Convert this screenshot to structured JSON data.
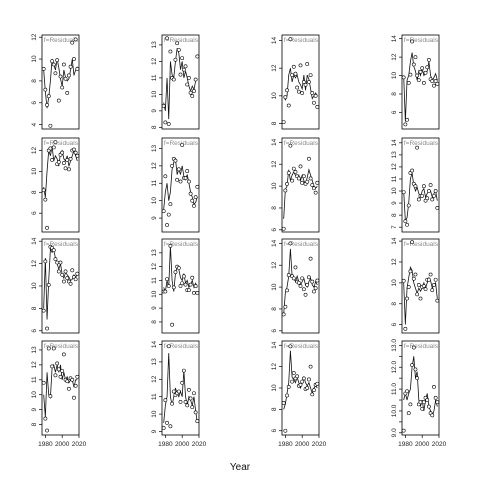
{
  "figure": {
    "xlabel": "Year"
  },
  "chart_data": {
    "type": "line",
    "xlabel": "Year",
    "x": [
      1978,
      1980,
      1982,
      1984,
      1986,
      1988,
      1990,
      1992,
      1994,
      1996,
      1998,
      2000,
      2002,
      2004,
      2006,
      2008,
      2010,
      2012,
      2014,
      2016,
      2018
    ],
    "x_ticks": [
      1980,
      2000,
      2020
    ],
    "panel_label_suffix": "f=Residuals",
    "panels": [
      {
        "row": 0,
        "col": 0,
        "ylim": [
          3.6,
          12.2
        ],
        "yticks": [
          4,
          6,
          8,
          10,
          12
        ],
        "ytick_labels": [
          "4",
          "6",
          "8",
          "10",
          "12"
        ],
        "y_fit": [
          9,
          7,
          5.5,
          6.5,
          8,
          10,
          9.5,
          9,
          10,
          9.2,
          8.2,
          7.5,
          9,
          8.3,
          8,
          8.2,
          9,
          10,
          8.5,
          9,
          9.3
        ],
        "y_points": [
          9.1,
          7.2,
          5.8,
          6.6,
          3.9,
          9.8,
          9.5,
          8.7,
          9.9,
          6.2,
          8.4,
          7.4,
          9.5,
          8.2,
          6.9,
          8.5,
          9.3,
          11.5,
          10,
          11.8,
          9.1
        ]
      },
      {
        "row": 0,
        "col": 1,
        "ylim": [
          7.9,
          13.6
        ],
        "yticks": [
          8,
          9,
          10,
          11,
          12,
          13
        ],
        "ytick_labels": [
          "8",
          "9",
          "10",
          "11",
          "12",
          "13"
        ],
        "y_fit": [
          9.5,
          9,
          11,
          8.5,
          12,
          11.2,
          11,
          12,
          12.8,
          12.5,
          11.5,
          12,
          11,
          11.4,
          11,
          10.5,
          10.2,
          10.5,
          10.3,
          10.8,
          10.9
        ],
        "y_points": [
          9.3,
          8.3,
          13.4,
          8.2,
          12.6,
          11,
          10.9,
          12.1,
          13.1,
          12.7,
          11.2,
          12.2,
          11.5,
          11.7,
          10.6,
          11,
          10.1,
          9.9,
          10.2,
          10.9,
          12.3
        ]
      },
      {
        "row": 0,
        "col": 2,
        "ylim": [
          7.6,
          14.4
        ],
        "yticks": [
          8,
          10,
          12,
          14
        ],
        "ytick_labels": [
          "8",
          "10",
          "12",
          "14"
        ],
        "y_fit": [
          10,
          9.7,
          10,
          11.5,
          12,
          11,
          11.5,
          11.3,
          11.5,
          11,
          10.8,
          10.5,
          11.5,
          10.4,
          11.5,
          11.2,
          10.5,
          9.8,
          10,
          10.2,
          10
        ],
        "y_points": [
          8.1,
          9.9,
          10.4,
          9.3,
          14.1,
          11.5,
          12.1,
          11.6,
          10.6,
          10.3,
          12.2,
          10.2,
          11,
          10.8,
          12.3,
          11,
          11.5,
          10.2,
          9.5,
          10,
          9.2
        ]
      },
      {
        "row": 0,
        "col": 3,
        "ylim": [
          4.2,
          14.4
        ],
        "yticks": [
          6,
          8,
          10,
          12,
          14
        ],
        "ytick_labels": [
          "6",
          "8",
          "10",
          "12",
          "14"
        ],
        "y_fit": [
          10,
          5,
          9.5,
          10,
          11.5,
          12.5,
          11,
          10.5,
          9.5,
          10.5,
          10,
          10.8,
          10,
          10.2,
          10.5,
          11.5,
          10,
          9.5,
          9.8,
          10.2,
          9.5
        ],
        "y_points": [
          9.8,
          4.7,
          5.2,
          9.2,
          10.1,
          13.7,
          11.2,
          12,
          10,
          9.5,
          10.4,
          10.8,
          9.2,
          10.3,
          10.9,
          11.7,
          9.6,
          9.4,
          8.9,
          9.4,
          9.1
        ]
      },
      {
        "row": 1,
        "col": 0,
        "ylim": [
          4.2,
          13.2
        ],
        "yticks": [
          6,
          8,
          10,
          12
        ],
        "ytick_labels": [
          "6",
          "8",
          "10",
          "12"
        ],
        "y_fit": [
          8.5,
          7.5,
          10,
          12,
          11.5,
          12.4,
          11,
          11.5,
          11.2,
          10.5,
          11.8,
          12,
          11.2,
          11,
          11.5,
          10.5,
          11,
          11.5,
          12,
          11.5,
          11
        ],
        "y_points": [
          8.2,
          7.3,
          4.6,
          12,
          12.2,
          11.1,
          12.3,
          12.8,
          10.7,
          10.9,
          11.6,
          11.8,
          10.8,
          10.3,
          11.1,
          10.2,
          11.2,
          12,
          12.1,
          11.8,
          11.5
        ]
      },
      {
        "row": 1,
        "col": 1,
        "ylim": [
          8.2,
          13.6
        ],
        "yticks": [
          9,
          10,
          11,
          12,
          13
        ],
        "ytick_labels": [
          "9",
          "10",
          "11",
          "12",
          "13"
        ],
        "y_fit": [
          9.5,
          10.5,
          11,
          10,
          10.5,
          11.8,
          12.2,
          12.4,
          11.5,
          11.8,
          11.5,
          12,
          11.4,
          11.2,
          11.5,
          11,
          10.5,
          10.2,
          9.8,
          9.9,
          10.2
        ],
        "y_points": [
          9.4,
          11.4,
          8.6,
          9.2,
          9.8,
          12,
          12.4,
          12.3,
          11.2,
          11.8,
          11.1,
          13.2,
          11.3,
          11.3,
          11.7,
          11.1,
          10.4,
          10,
          9.7,
          10.2,
          10.8
        ]
      },
      {
        "row": 1,
        "col": 2,
        "ylim": [
          5.8,
          14.4
        ],
        "yticks": [
          6,
          8,
          10,
          12,
          14
        ],
        "ytick_labels": [
          "6",
          "8",
          "10",
          "12",
          "14"
        ],
        "y_fit": [
          7,
          9.7,
          10,
          11.5,
          10.5,
          11,
          11.3,
          11,
          10.8,
          11,
          10.5,
          11,
          10.5,
          10.2,
          10.8,
          11.5,
          11,
          10.5,
          10,
          9.8,
          10
        ],
        "y_points": [
          6.1,
          9.6,
          10.2,
          11.2,
          13.7,
          10.5,
          11.6,
          11.3,
          10.9,
          10.7,
          11.8,
          10.3,
          10.9,
          10.2,
          10.4,
          12.5,
          10.7,
          10.1,
          9.8,
          9.4,
          10.3
        ]
      },
      {
        "row": 1,
        "col": 3,
        "ylim": [
          6.6,
          14.4
        ],
        "yticks": [
          7,
          8,
          9,
          10,
          11,
          12,
          13,
          14
        ],
        "ytick_labels": [
          "7",
          "8",
          "9",
          "10",
          "11",
          "12",
          "13",
          "14"
        ],
        "y_fit": [
          10,
          7.5,
          7.8,
          9,
          11,
          11.5,
          10.5,
          10,
          10.3,
          9.8,
          9.5,
          10,
          10.2,
          9.5,
          9.8,
          10,
          10,
          9.5,
          9.8,
          10,
          9.2
        ],
        "y_points": [
          9.9,
          7.5,
          7.2,
          8.8,
          11.5,
          11.7,
          10.6,
          10.4,
          13.6,
          9.3,
          9.6,
          9.6,
          10.4,
          9.2,
          9.4,
          10,
          10.5,
          9.3,
          9.6,
          10,
          8.6
        ]
      },
      {
        "row": 2,
        "col": 0,
        "ylim": [
          5.8,
          14.2
        ],
        "yticks": [
          6,
          8,
          10,
          12,
          14
        ],
        "ytick_labels": [
          "6",
          "8",
          "10",
          "12",
          "14"
        ],
        "y_fit": [
          8,
          12.5,
          7,
          10.5,
          13.3,
          13,
          13.2,
          12.5,
          12,
          11.5,
          12,
          11,
          10.7,
          11.2,
          11,
          10.8,
          10.5,
          10.6,
          11,
          10.8,
          11
        ],
        "y_points": [
          7.8,
          12.2,
          6.2,
          10.1,
          13.5,
          13.4,
          13.2,
          12.4,
          12.1,
          11.3,
          12.1,
          11,
          10.4,
          11.3,
          10.7,
          10.4,
          10.2,
          11.4,
          10.8,
          10.6,
          11.1
        ]
      },
      {
        "row": 2,
        "col": 1,
        "ylim": [
          7.2,
          14.0
        ],
        "yticks": [
          8,
          9,
          10,
          11,
          12,
          13
        ],
        "ytick_labels": [
          "8",
          "9",
          "10",
          "11",
          "12",
          "13"
        ],
        "y_fit": [
          10.5,
          10.2,
          11,
          10.5,
          13.5,
          11,
          10.2,
          11.5,
          12,
          11.8,
          11.2,
          11,
          11.5,
          10.8,
          11,
          10.5,
          10.7,
          11,
          10.5,
          10.8,
          10.5
        ],
        "y_points": [
          10.2,
          10.2,
          11.1,
          10.6,
          13.5,
          7.8,
          10.5,
          11.6,
          12,
          11.9,
          10.6,
          10.8,
          11.3,
          10.7,
          10.3,
          10.3,
          10.7,
          11.2,
          10.1,
          10.6,
          10.1
        ]
      },
      {
        "row": 2,
        "col": 2,
        "ylim": [
          5.8,
          14.4
        ],
        "yticks": [
          6,
          8,
          10,
          12,
          14
        ],
        "ytick_labels": [
          "6",
          "8",
          "10",
          "12",
          "14"
        ],
        "y_fit": [
          7.5,
          9.5,
          10,
          11,
          13.5,
          11,
          10.8,
          10.5,
          11,
          10.5,
          10.2,
          10.5,
          10.8,
          10.2,
          10,
          10.5,
          10.8,
          10.2,
          10,
          10.5,
          10.2
        ],
        "y_points": [
          7.5,
          8.2,
          9.7,
          11.1,
          14,
          11,
          10.8,
          11.8,
          10.5,
          10.4,
          10.1,
          10.8,
          9.8,
          9.3,
          10.2,
          10.9,
          12.6,
          10.5,
          9.6,
          9.9,
          10.6
        ]
      },
      {
        "row": 2,
        "col": 3,
        "ylim": [
          5.2,
          14.2
        ],
        "yticks": [
          6,
          8,
          10,
          12,
          14
        ],
        "ytick_labels": [
          "6",
          "8",
          "10",
          "12",
          "14"
        ],
        "y_fit": [
          10,
          6,
          9.5,
          10.5,
          11.5,
          11.2,
          10,
          9.5,
          9,
          9.5,
          9.2,
          9.5,
          10,
          9.5,
          10,
          10.5,
          10.2,
          9.5,
          9.8,
          10,
          8.5
        ],
        "y_points": [
          10.2,
          5.6,
          8.5,
          9.6,
          11.1,
          13.9,
          10.4,
          10.8,
          8.9,
          9.8,
          8.5,
          9.6,
          9.7,
          9.4,
          10.3,
          10.3,
          10.8,
          9.3,
          9.8,
          10.3,
          8.3
        ]
      },
      {
        "row": 3,
        "col": 0,
        "ylim": [
          7.3,
          13.6
        ],
        "yticks": [
          8,
          9,
          10,
          11,
          12,
          13
        ],
        "ytick_labels": [
          "8",
          "9",
          "10",
          "11",
          "12",
          "13"
        ],
        "y_fit": [
          10,
          8.5,
          11.5,
          10,
          9.8,
          11.8,
          12,
          11.5,
          12,
          11.5,
          12,
          11,
          11.5,
          11,
          11.2,
          10.8,
          11,
          11,
          10.5,
          11,
          11
        ],
        "y_points": [
          10.8,
          8.4,
          7.6,
          13.1,
          9.9,
          11.9,
          13.1,
          11.3,
          12.1,
          11.7,
          11.2,
          11.6,
          12.7,
          11,
          10.9,
          10.4,
          11.1,
          11,
          9.8,
          10.6,
          11.2
        ]
      },
      {
        "row": 3,
        "col": 1,
        "ylim": [
          8.8,
          14.2
        ],
        "yticks": [
          9,
          10,
          11,
          12,
          13,
          14
        ],
        "ytick_labels": [
          "9",
          "10",
          "11",
          "12",
          "13",
          "14"
        ],
        "y_fit": [
          9.5,
          10.5,
          11,
          13.5,
          11,
          10.5,
          11,
          11.5,
          11.2,
          11,
          11.3,
          11,
          12.5,
          11,
          10.5,
          11,
          10.8,
          10.5,
          11,
          10.2,
          9.5
        ],
        "y_points": [
          9.2,
          10.8,
          9.5,
          13.9,
          9.3,
          10.6,
          11.3,
          11.1,
          11.2,
          11.3,
          10.7,
          11.8,
          12.5,
          10.7,
          10.5,
          11.4,
          10.9,
          10.4,
          11.2,
          10.1,
          9.6
        ]
      },
      {
        "row": 3,
        "col": 2,
        "ylim": [
          5.6,
          14.4
        ],
        "yticks": [
          6,
          8,
          10,
          12,
          14
        ],
        "ytick_labels": [
          "6",
          "8",
          "10",
          "12",
          "14"
        ],
        "y_fit": [
          8,
          8.5,
          9.5,
          10.5,
          13.5,
          11,
          10.8,
          10.5,
          11,
          10.5,
          10,
          10.5,
          11,
          10.5,
          10.2,
          10.5,
          10,
          9.5,
          10,
          10.2,
          10
        ],
        "y_points": [
          8.6,
          6,
          9.3,
          10.1,
          13.9,
          10.6,
          11.4,
          10.9,
          11.1,
          10.2,
          10.3,
          10.6,
          10.9,
          9.9,
          10,
          10.8,
          12,
          9.4,
          9.8,
          10.3,
          10.4
        ]
      },
      {
        "row": 3,
        "col": 3,
        "ylim": [
          8.9,
          13.2
        ],
        "yticks": [
          9,
          9.5,
          10,
          10.5,
          11,
          11.5,
          12,
          12.5,
          13
        ],
        "ytick_labels": [
          "9.0",
          "",
          "10.0",
          "",
          "11.0",
          "",
          "12.0",
          "",
          "13.0"
        ],
        "y_fit": [
          10.5,
          10.8,
          10.5,
          10.8,
          11,
          12,
          12.5,
          11.5,
          11.8,
          10.5,
          10.2,
          10.5,
          10,
          10.5,
          10.8,
          10.2,
          10,
          9.8,
          10,
          10.5,
          10.2
        ],
        "y_points": [
          9.1,
          10.8,
          10.9,
          9.9,
          10.3,
          12.1,
          12.9,
          11.9,
          11.5,
          10.3,
          10.4,
          10.1,
          10.4,
          10.6,
          10.5,
          10.2,
          9.9,
          9.8,
          11.1,
          10.6,
          10.4
        ]
      }
    ]
  }
}
